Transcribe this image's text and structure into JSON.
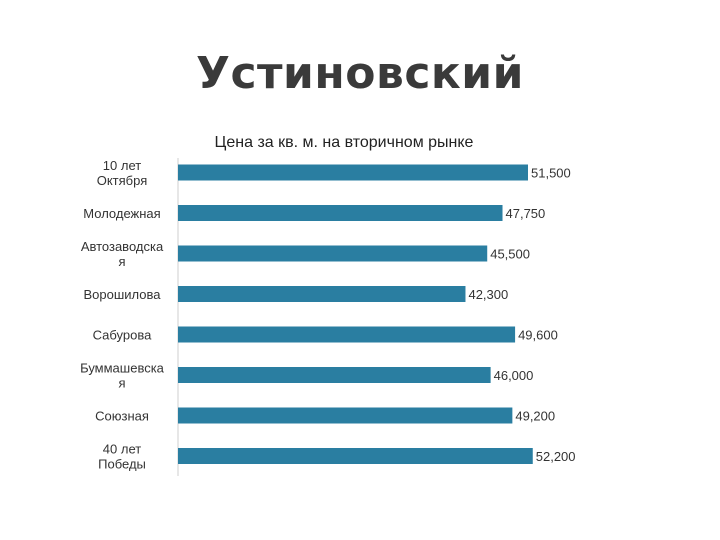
{
  "slide": {
    "title": "Устиновский"
  },
  "chart_data": {
    "type": "bar",
    "orientation": "horizontal",
    "title": "Цена за кв. м. на вторичном рынке",
    "categories": [
      [
        "10 лет",
        "Октября"
      ],
      [
        "Молодежная"
      ],
      [
        "Автозаводска",
        "я"
      ],
      [
        "Ворошилова"
      ],
      [
        "Сабурова"
      ],
      [
        "Буммашевска",
        "я"
      ],
      [
        "Союзная"
      ],
      [
        "40 лет",
        "Победы"
      ]
    ],
    "values": [
      51500,
      47750,
      45500,
      42300,
      49600,
      46000,
      49200,
      52200
    ],
    "value_labels": [
      "51,500",
      "47,750",
      "45,500",
      "42,300",
      "49,600",
      "46,000",
      "49,200",
      "52,200"
    ],
    "bar_color": "#2a7ea1",
    "grid": false,
    "legend": "none"
  }
}
